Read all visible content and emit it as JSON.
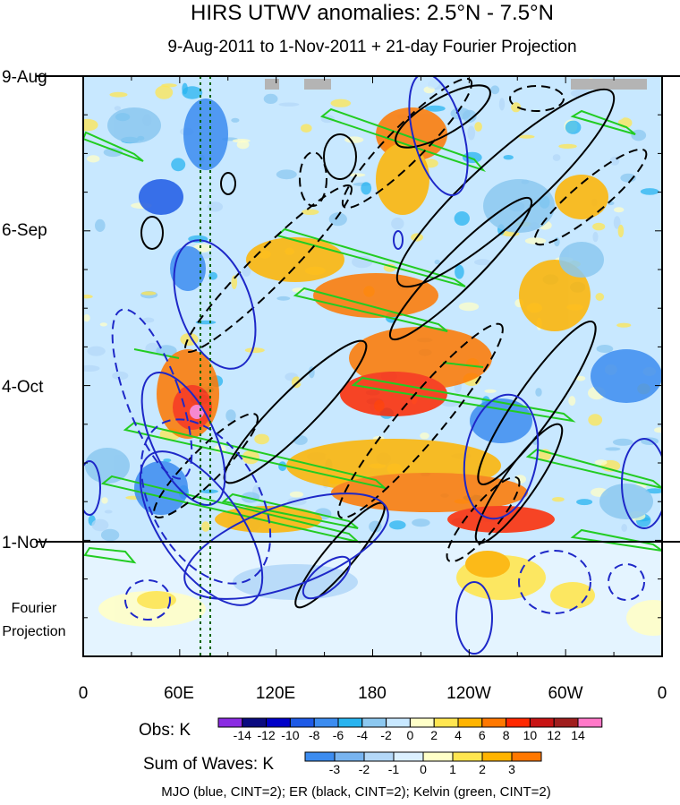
{
  "chart_data": {
    "type": "heatmap",
    "title": "HIRS UTWV anomalies: 2.5°N - 7.5°N",
    "subtitle": "9-Aug-2011 to 1-Nov-2011 + 21-day Fourier Projection",
    "y_ticks": [
      "9-Aug",
      "6-Sep",
      "4-Oct",
      "1-Nov"
    ],
    "projection_label": [
      "Fourier",
      "Projection"
    ],
    "x_ticks": [
      "0",
      "60E",
      "120E",
      "180",
      "120W",
      "60W",
      "0"
    ],
    "obs_legend": {
      "label": "Obs: K",
      "ticks": [
        "-14",
        "-12",
        "-10",
        "-8",
        "-6",
        "-4",
        "-2",
        "0",
        "2",
        "4",
        "6",
        "8",
        "10",
        "12",
        "14"
      ],
      "colors": [
        "#8a2be2",
        "#0a0a80",
        "#0000c8",
        "#1e5ae6",
        "#3c8cf0",
        "#28b4f0",
        "#8cc8f0",
        "#c8e8ff",
        "#ffffc8",
        "#ffe650",
        "#ffb400",
        "#ff7800",
        "#ff2800",
        "#c81414",
        "#a01e1e",
        "#ff78c8"
      ]
    },
    "waves_legend": {
      "label": "Sum of Waves: K",
      "ticks": [
        "-3",
        "-2",
        "-1",
        "0",
        "1",
        "2",
        "3"
      ],
      "colors": [
        "#3c8cf0",
        "#78b4f0",
        "#b4d8f8",
        "#dcf0ff",
        "#ffffc8",
        "#ffe650",
        "#ffb400",
        "#ff7800"
      ]
    },
    "footer": "MJO (blue, CINT=2); ER (black, CINT=2); Kelvin (green, CINT=2)"
  }
}
